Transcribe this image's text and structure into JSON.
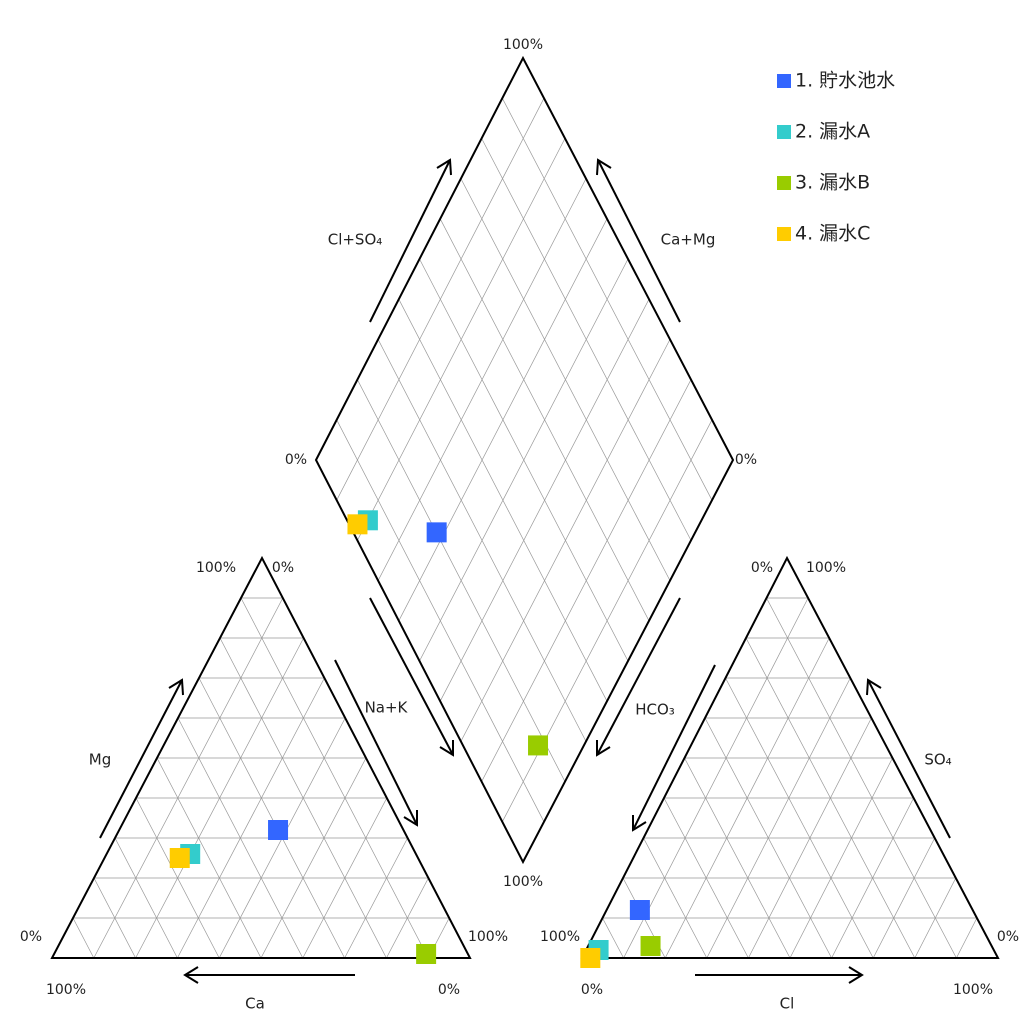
{
  "chart_data": {
    "type": "piper",
    "ticks": [
      {
        "value": 0,
        "label": "0%"
      },
      {
        "value": 100,
        "label": "100%"
      }
    ],
    "cation_axes": [
      "Ca",
      "Mg",
      "Na+K"
    ],
    "anion_axes": [
      "HCO₃",
      "SO₄",
      "Cl"
    ],
    "diamond_axes": [
      "Cl+SO₄",
      "Ca+Mg"
    ],
    "grid": true,
    "series": [
      {
        "name": "1.  貯水池水",
        "color": "#3366ff",
        "cations": [
          30,
          32,
          38
        ],
        "anions": [
          80,
          12,
          8
        ]
      },
      {
        "name": "2.  漏水A",
        "color": "#33cccc",
        "cations": [
          54,
          26,
          20
        ],
        "anions": [
          95,
          2,
          3
        ]
      },
      {
        "name": "3.  漏水B",
        "color": "#99cc00",
        "cations": [
          10,
          1,
          89
        ],
        "anions": [
          82,
          3,
          15
        ]
      },
      {
        "name": "4.  漏水C",
        "color": "#ffcc00",
        "cations": [
          57,
          25,
          18
        ],
        "anions": [
          98,
          0,
          2
        ]
      }
    ]
  }
}
